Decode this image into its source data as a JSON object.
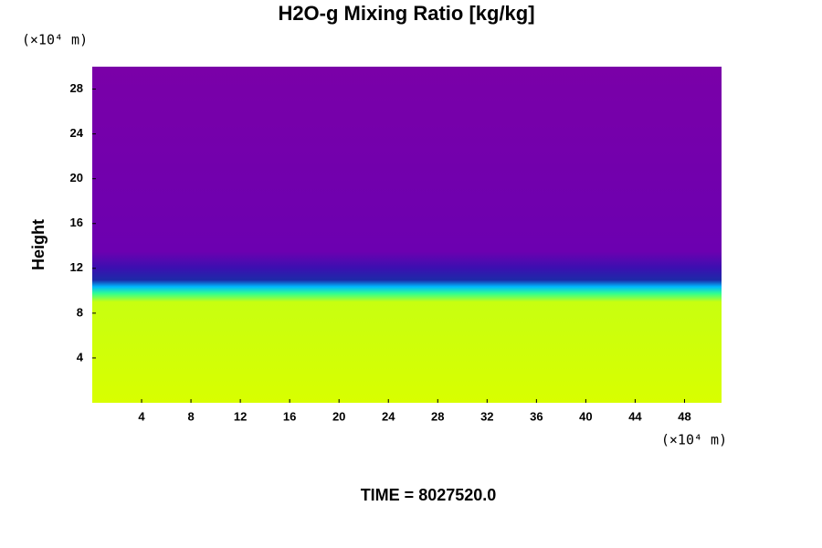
{
  "chart_data": {
    "type": "field",
    "title": "H2O-g Mixing Ratio [kg/kg]",
    "y_label": "Height",
    "y_unit": "(×10⁴ m)",
    "x_unit": "(×10⁴ m)",
    "footer": "TIME = 8027520.0",
    "xlim": [
      0,
      51
    ],
    "ylim": [
      0,
      30
    ],
    "xticks": [
      4,
      8,
      12,
      16,
      20,
      24,
      28,
      32,
      36,
      40,
      44,
      48
    ],
    "yticks": [
      4,
      8,
      12,
      16,
      20,
      24,
      28
    ]
  }
}
